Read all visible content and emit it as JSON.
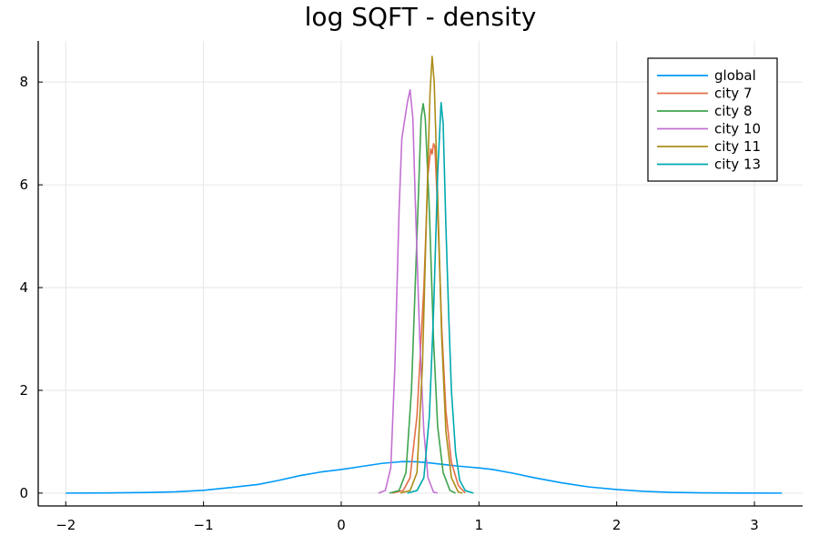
{
  "chart_data": {
    "type": "line",
    "title": "log SQFT - density",
    "xlabel": "",
    "ylabel": "",
    "xlim": [
      -2.2,
      3.35
    ],
    "ylim": [
      -0.25,
      8.8
    ],
    "xticks": [
      -2,
      -1,
      0,
      1,
      2,
      3
    ],
    "yticks": [
      0,
      2,
      4,
      6,
      8
    ],
    "grid": true,
    "legend_position": "top-right",
    "series": [
      {
        "name": "global",
        "color": "#009AFA",
        "points": [
          [
            -2.0,
            0.0
          ],
          [
            -1.7,
            0.004
          ],
          [
            -1.4,
            0.012
          ],
          [
            -1.2,
            0.025
          ],
          [
            -1.0,
            0.055
          ],
          [
            -0.8,
            0.11
          ],
          [
            -0.6,
            0.17
          ],
          [
            -0.45,
            0.25
          ],
          [
            -0.3,
            0.34
          ],
          [
            -0.15,
            0.41
          ],
          [
            0.0,
            0.46
          ],
          [
            0.15,
            0.52
          ],
          [
            0.3,
            0.58
          ],
          [
            0.45,
            0.615
          ],
          [
            0.55,
            0.61
          ],
          [
            0.65,
            0.585
          ],
          [
            0.75,
            0.555
          ],
          [
            0.85,
            0.525
          ],
          [
            1.0,
            0.49
          ],
          [
            1.1,
            0.46
          ],
          [
            1.25,
            0.385
          ],
          [
            1.4,
            0.3
          ],
          [
            1.6,
            0.2
          ],
          [
            1.8,
            0.12
          ],
          [
            2.0,
            0.07
          ],
          [
            2.2,
            0.035
          ],
          [
            2.4,
            0.015
          ],
          [
            2.6,
            0.006
          ],
          [
            2.9,
            0.002
          ],
          [
            3.2,
            0.0
          ]
        ]
      },
      {
        "name": "city 7",
        "color": "#E36F47",
        "points": [
          [
            0.37,
            0.0
          ],
          [
            0.45,
            0.05
          ],
          [
            0.5,
            0.3
          ],
          [
            0.55,
            1.5
          ],
          [
            0.6,
            4.0
          ],
          [
            0.63,
            6.2
          ],
          [
            0.65,
            6.7
          ],
          [
            0.66,
            6.6
          ],
          [
            0.67,
            6.8
          ],
          [
            0.68,
            6.75
          ],
          [
            0.7,
            5.5
          ],
          [
            0.73,
            3.2
          ],
          [
            0.76,
            1.6
          ],
          [
            0.8,
            0.6
          ],
          [
            0.85,
            0.15
          ],
          [
            0.9,
            0.0
          ]
        ]
      },
      {
        "name": "city 8",
        "color": "#3EA44E",
        "points": [
          [
            0.35,
            0.0
          ],
          [
            0.42,
            0.05
          ],
          [
            0.47,
            0.4
          ],
          [
            0.51,
            2.0
          ],
          [
            0.55,
            5.0
          ],
          [
            0.58,
            7.3
          ],
          [
            0.595,
            7.58
          ],
          [
            0.61,
            7.3
          ],
          [
            0.64,
            5.5
          ],
          [
            0.67,
            3.0
          ],
          [
            0.7,
            1.3
          ],
          [
            0.74,
            0.4
          ],
          [
            0.79,
            0.05
          ],
          [
            0.83,
            0.0
          ]
        ]
      },
      {
        "name": "city 10",
        "color": "#C371D2",
        "points": [
          [
            0.27,
            0.0
          ],
          [
            0.32,
            0.05
          ],
          [
            0.36,
            0.5
          ],
          [
            0.39,
            2.5
          ],
          [
            0.42,
            5.5
          ],
          [
            0.44,
            6.9
          ],
          [
            0.46,
            7.25
          ],
          [
            0.48,
            7.6
          ],
          [
            0.5,
            7.85
          ],
          [
            0.52,
            7.3
          ],
          [
            0.54,
            5.5
          ],
          [
            0.57,
            3.0
          ],
          [
            0.6,
            1.2
          ],
          [
            0.63,
            0.3
          ],
          [
            0.67,
            0.02
          ],
          [
            0.7,
            0.0
          ]
        ]
      },
      {
        "name": "city 11",
        "color": "#AC8D18",
        "points": [
          [
            0.43,
            0.0
          ],
          [
            0.5,
            0.05
          ],
          [
            0.55,
            0.4
          ],
          [
            0.59,
            2.5
          ],
          [
            0.62,
            5.5
          ],
          [
            0.645,
            7.8
          ],
          [
            0.66,
            8.5
          ],
          [
            0.675,
            8.0
          ],
          [
            0.7,
            5.8
          ],
          [
            0.73,
            3.0
          ],
          [
            0.76,
            1.2
          ],
          [
            0.8,
            0.3
          ],
          [
            0.85,
            0.02
          ],
          [
            0.88,
            0.0
          ]
        ]
      },
      {
        "name": "city 13",
        "color": "#00A9AD",
        "points": [
          [
            0.48,
            0.0
          ],
          [
            0.55,
            0.05
          ],
          [
            0.6,
            0.3
          ],
          [
            0.64,
            1.5
          ],
          [
            0.67,
            3.5
          ],
          [
            0.7,
            6.2
          ],
          [
            0.725,
            7.6
          ],
          [
            0.74,
            7.2
          ],
          [
            0.76,
            5.2
          ],
          [
            0.78,
            3.5
          ],
          [
            0.8,
            2.0
          ],
          [
            0.83,
            0.8
          ],
          [
            0.86,
            0.25
          ],
          [
            0.9,
            0.05
          ],
          [
            0.96,
            0.0
          ]
        ]
      }
    ]
  }
}
